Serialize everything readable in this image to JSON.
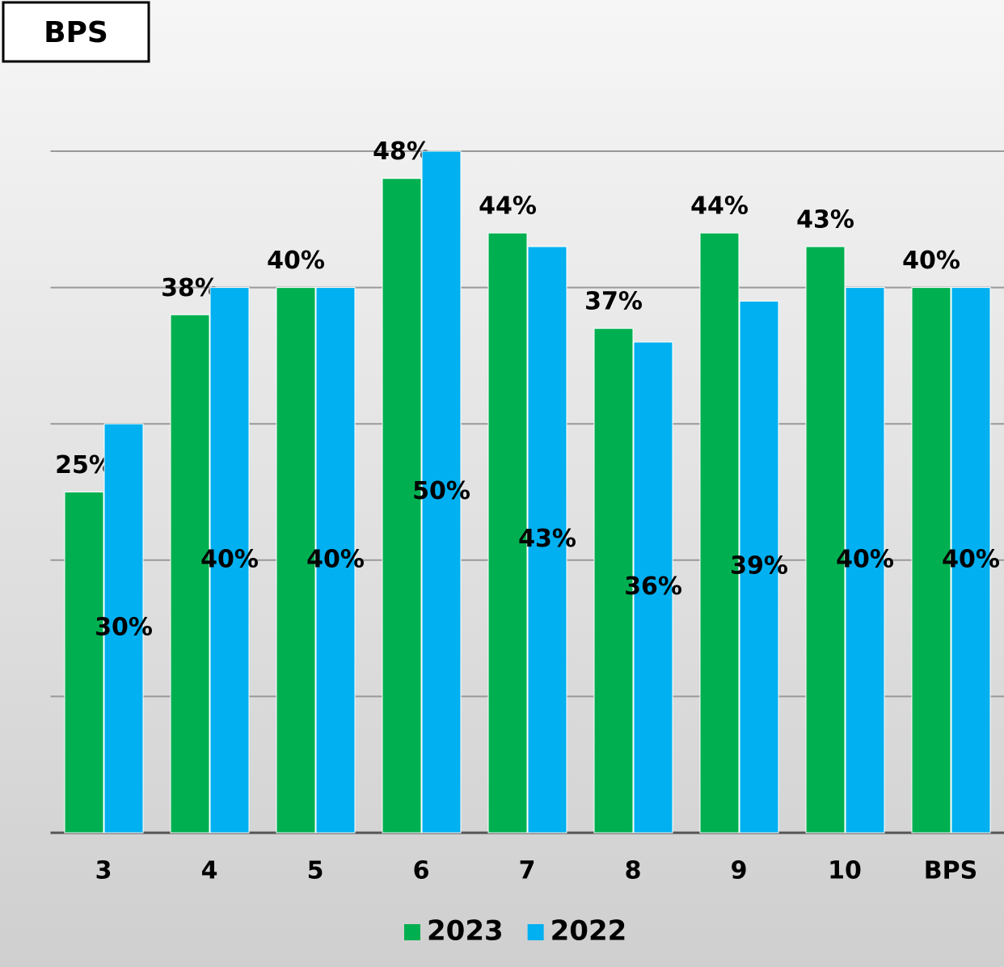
{
  "chart_data": {
    "type": "bar",
    "title": "BPS",
    "categories": [
      "3",
      "4",
      "5",
      "6",
      "7",
      "8",
      "9",
      "10",
      "BPS"
    ],
    "series": [
      {
        "name": "2023",
        "color": "#00b050",
        "values": [
          25,
          38,
          40,
          48,
          44,
          37,
          44,
          43,
          40
        ],
        "value_labels": [
          "25%",
          "38%",
          "40%",
          "48%",
          "44%",
          "37%",
          "44%",
          "43%",
          "40%"
        ]
      },
      {
        "name": "2022",
        "color": "#00b0f0",
        "values": [
          30,
          40,
          40,
          50,
          43,
          36,
          39,
          40,
          40
        ],
        "value_labels": [
          "30%",
          "40%",
          "40%",
          "50%",
          "43%",
          "36%",
          "39%",
          "40%",
          "40%"
        ]
      }
    ],
    "ylim": [
      0,
      50
    ],
    "yticks": [
      0,
      10,
      20,
      30,
      40,
      50
    ],
    "grid": true,
    "legend": "bottom"
  }
}
